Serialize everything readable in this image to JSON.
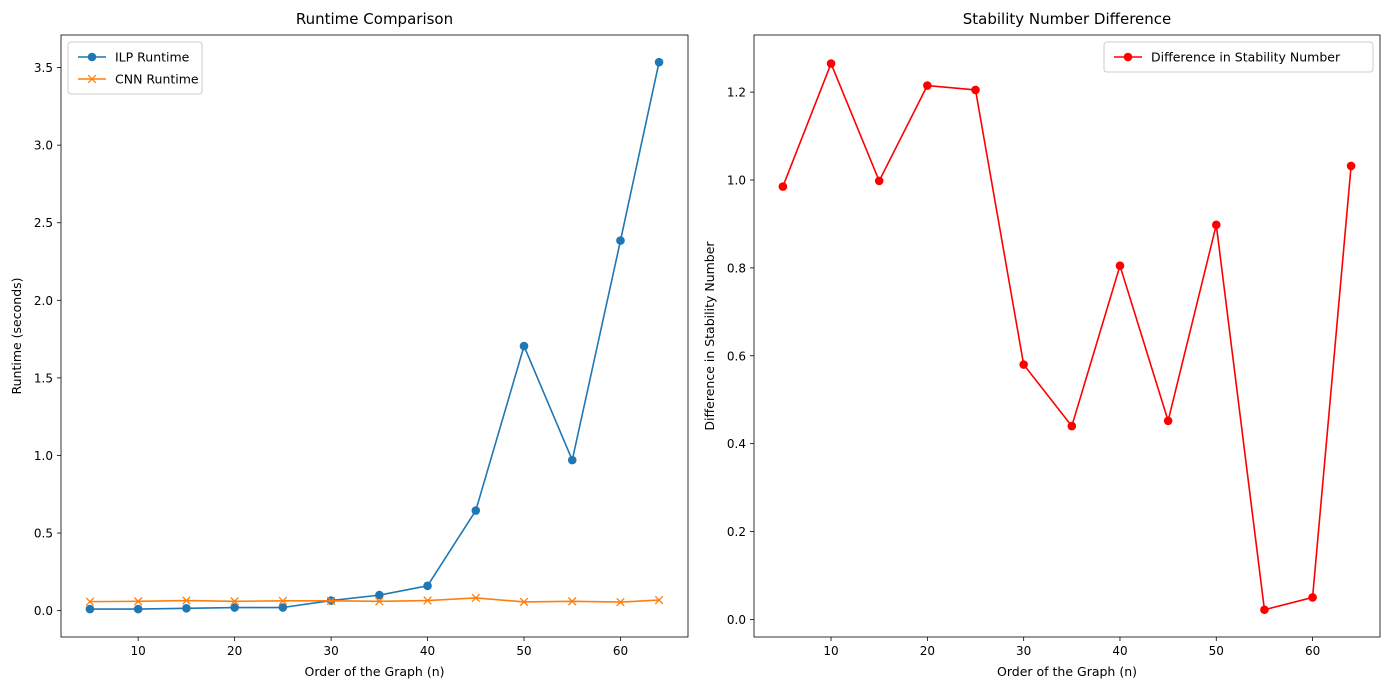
{
  "chart_data": [
    {
      "type": "line",
      "title": "Runtime Comparison",
      "xlabel": "Order of the Graph (n)",
      "ylabel": "Runtime (seconds)",
      "xlim": [
        2,
        67
      ],
      "ylim": [
        -0.17,
        3.71
      ],
      "xticks": [
        10,
        20,
        30,
        40,
        50,
        60
      ],
      "yticks": [
        0.0,
        0.5,
        1.0,
        1.5,
        2.0,
        2.5,
        3.0,
        3.5
      ],
      "ytick_format": 1,
      "grid": false,
      "legend_position": "upper-left",
      "x": [
        5,
        10,
        15,
        20,
        25,
        30,
        35,
        40,
        45,
        50,
        55,
        60,
        64
      ],
      "series": [
        {
          "name": "ILP Runtime",
          "color": "#1f77b4",
          "marker": "circle",
          "values": [
            0.01,
            0.01,
            0.015,
            0.02,
            0.02,
            0.065,
            0.1,
            0.16,
            0.645,
            1.705,
            0.97,
            2.385,
            3.535
          ]
        },
        {
          "name": "CNN Runtime",
          "color": "#ff7f0e",
          "marker": "x",
          "values": [
            0.058,
            0.06,
            0.065,
            0.06,
            0.063,
            0.063,
            0.06,
            0.065,
            0.082,
            0.056,
            0.06,
            0.055,
            0.068
          ]
        }
      ]
    },
    {
      "type": "line",
      "title": "Stability Number Difference",
      "xlabel": "Order of the Graph (n)",
      "ylabel": "Difference in Stability Number",
      "xlim": [
        2,
        67
      ],
      "ylim": [
        -0.04,
        1.33
      ],
      "xticks": [
        10,
        20,
        30,
        40,
        50,
        60
      ],
      "yticks": [
        0.0,
        0.2,
        0.4,
        0.6,
        0.8,
        1.0,
        1.2
      ],
      "ytick_format": 1,
      "grid": false,
      "legend_position": "upper-right",
      "x": [
        5,
        10,
        15,
        20,
        25,
        30,
        35,
        40,
        45,
        50,
        55,
        60,
        64
      ],
      "series": [
        {
          "name": "Difference in Stability Number",
          "color": "#ff0000",
          "marker": "circle",
          "values": [
            0.985,
            1.265,
            0.998,
            1.215,
            1.205,
            0.58,
            0.44,
            0.805,
            0.452,
            0.898,
            0.022,
            0.05,
            1.032
          ]
        }
      ]
    }
  ]
}
